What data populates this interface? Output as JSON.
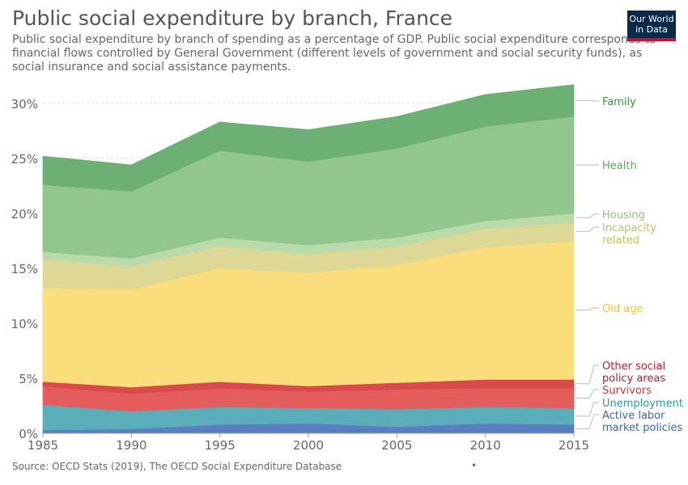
{
  "title": "Public social expenditure by branch, France",
  "subtitle": "Public social expenditure by branch of spending as a percentage of GDP. Public social expenditure corresponds to financial flows controlled by General Government (different levels of government and social security funds), as social insurance and social assistance payments.",
  "logo": {
    "line1": "Our World",
    "line2": "in Data"
  },
  "source": "Source: OECD Stats (2019), The OECD Social Expenditure Database",
  "footer_dot": "•",
  "chart_data": {
    "type": "area",
    "stacked": true,
    "x": [
      1985,
      1990,
      1995,
      2000,
      2005,
      2010,
      2015
    ],
    "ylim": [
      0,
      31.6
    ],
    "y_ticks": [
      0,
      5,
      10,
      15,
      20,
      25,
      30
    ],
    "y_tick_labels": [
      "0%",
      "5%",
      "10%",
      "15%",
      "20%",
      "25%",
      "30%"
    ],
    "x_tick_labels": [
      "1985",
      "1990",
      "1995",
      "2000",
      "2005",
      "2010",
      "2015"
    ],
    "grid": "horizontal dashed",
    "legend_placement": "right, labels aligned to series",
    "series": [
      {
        "name": "Active labor market policies",
        "color": "#5b7ec2",
        "values": [
          0.3,
          0.4,
          0.8,
          0.9,
          0.6,
          0.9,
          0.8
        ]
      },
      {
        "name": "Unemployment",
        "color": "#5aaeb9",
        "values": [
          2.3,
          1.6,
          1.6,
          1.4,
          1.6,
          1.5,
          1.5
        ]
      },
      {
        "name": "Survivors",
        "color": "#e55c5c",
        "values": [
          1.7,
          1.6,
          1.7,
          1.5,
          1.8,
          1.7,
          1.8
        ]
      },
      {
        "name": "Other social policy areas",
        "color": "#d94a4a",
        "values": [
          0.4,
          0.6,
          0.6,
          0.5,
          0.6,
          0.8,
          0.8
        ]
      },
      {
        "name": "Old age",
        "color": "#fbde7c",
        "values": [
          8.5,
          8.9,
          10.3,
          10.3,
          10.7,
          12.0,
          12.6
        ]
      },
      {
        "name": "Incapacity related",
        "color": "#ddd895",
        "values": [
          2.6,
          2.1,
          2.0,
          1.7,
          1.7,
          1.7,
          1.7
        ]
      },
      {
        "name": "Housing",
        "color": "#b9dbaa",
        "values": [
          0.7,
          0.7,
          0.8,
          0.8,
          0.8,
          0.7,
          0.8
        ]
      },
      {
        "name": "Health",
        "color": "#91c68e",
        "values": [
          6.1,
          6.1,
          7.9,
          7.6,
          8.1,
          8.6,
          8.8
        ]
      },
      {
        "name": "Family",
        "color": "#6db074",
        "values": [
          2.6,
          2.4,
          2.6,
          2.9,
          2.9,
          2.9,
          2.9
        ]
      }
    ],
    "legend_labels": [
      {
        "series": "Family",
        "lines": [
          "Family"
        ],
        "text_color": "#3b9140"
      },
      {
        "series": "Health",
        "lines": [
          "Health"
        ],
        "text_color": "#5ea860"
      },
      {
        "series": "Housing",
        "lines": [
          "Housing"
        ],
        "text_color": "#8fc282"
      },
      {
        "series": "Incapacity related",
        "lines": [
          "Incapacity",
          "related"
        ],
        "text_color": "#c4be5e"
      },
      {
        "series": "Old age",
        "lines": [
          "Old age"
        ],
        "text_color": "#f0c431"
      },
      {
        "series": "Other social policy areas",
        "lines": [
          "Other social",
          "policy areas"
        ],
        "text_color": "#b81d2b"
      },
      {
        "series": "Survivors",
        "lines": [
          "Survivors"
        ],
        "text_color": "#d13a3a"
      },
      {
        "series": "Unemployment",
        "lines": [
          "Unemployment"
        ],
        "text_color": "#2a9aa8"
      },
      {
        "series": "Active labor market policies",
        "lines": [
          "Active labor",
          "market policies"
        ],
        "text_color": "#3d64a8"
      }
    ]
  }
}
